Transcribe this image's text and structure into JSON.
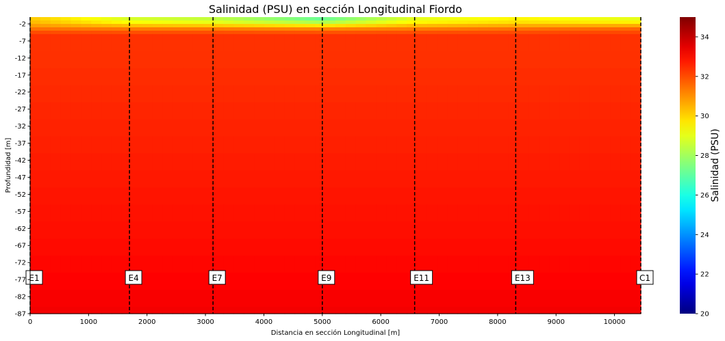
{
  "chart_data": {
    "type": "heatmap",
    "title": "Salinidad (PSU) en sección Longitudinal Fiordo",
    "xlabel": "Distancia en sección Longitudinal [m]",
    "ylabel": "Profundidad [m]",
    "xlim": [
      0,
      10450
    ],
    "ylim": [
      -87,
      0
    ],
    "x_ticks": [
      0,
      1000,
      2000,
      3000,
      4000,
      5000,
      6000,
      7000,
      8000,
      9000,
      10000
    ],
    "y_ticks": [
      -2,
      -7,
      -12,
      -17,
      -22,
      -27,
      -32,
      -37,
      -42,
      -47,
      -52,
      -57,
      -62,
      -67,
      -72,
      -77,
      -82,
      -87
    ],
    "colorbar": {
      "label": "Salinidad (PSU)",
      "range": [
        20,
        35
      ],
      "ticks": [
        20,
        22,
        24,
        26,
        28,
        30,
        32,
        34
      ],
      "colormap": "jet"
    },
    "stations": [
      {
        "name": "E1",
        "x": 0
      },
      {
        "name": "E4",
        "x": 1700
      },
      {
        "name": "E7",
        "x": 3130
      },
      {
        "name": "E9",
        "x": 5000
      },
      {
        "name": "E11",
        "x": 6580
      },
      {
        "name": "E13",
        "x": 8310
      },
      {
        "name": "C1",
        "x": 10450
      }
    ],
    "surface_salinity": [
      {
        "x": 0,
        "values": {
          "-0.5": 30.2,
          "-2": 30.5,
          "-3": 31.2,
          "-5": 32.3
        }
      },
      {
        "x": 1700,
        "values": {
          "-0.5": 28.8,
          "-2": 29.6,
          "-3": 31.0,
          "-5": 32.3
        }
      },
      {
        "x": 3130,
        "values": {
          "-0.5": 28.5,
          "-2": 29.3,
          "-3": 31.0,
          "-5": 32.3
        }
      },
      {
        "x": 5000,
        "values": {
          "-0.5": 27.2,
          "-2": 28.6,
          "-3": 30.8,
          "-5": 32.3
        }
      },
      {
        "x": 6580,
        "values": {
          "-0.5": 29.0,
          "-2": 29.7,
          "-3": 31.0,
          "-5": 32.3
        }
      },
      {
        "x": 8310,
        "values": {
          "-0.5": 29.5,
          "-2": 30.0,
          "-3": 31.2,
          "-5": 32.3
        }
      },
      {
        "x": 10450,
        "values": {
          "-0.5": 29.0,
          "-2": 29.8,
          "-3": 31.4,
          "-5": 32.3
        }
      }
    ],
    "deep_salinity": {
      "-10": 32.4,
      "-30": 32.6,
      "-50": 32.8,
      "-70": 33.0,
      "-87": 33.3
    },
    "grid": false
  }
}
